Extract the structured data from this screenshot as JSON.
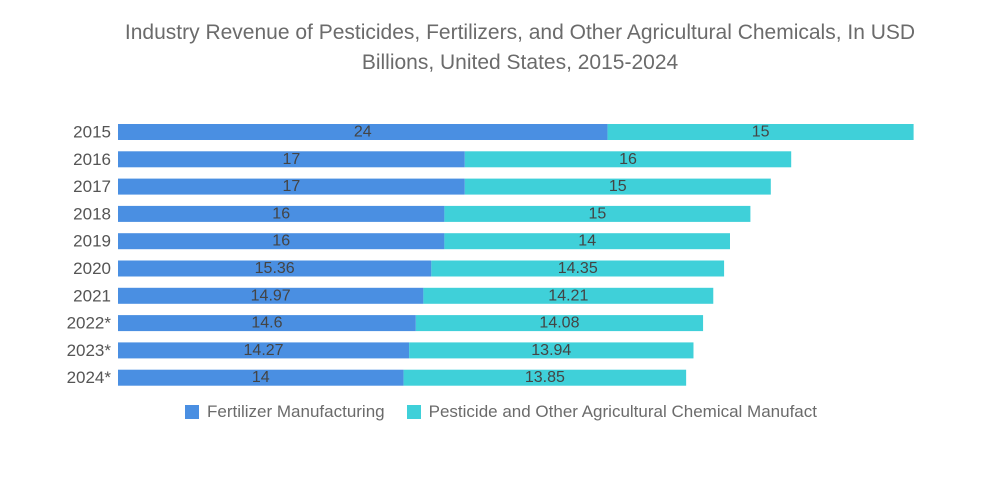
{
  "chart_data": {
    "type": "bar",
    "orientation": "horizontal",
    "stacked": true,
    "title_lines": [
      "Industry Revenue of Pesticides, Fertilizers, and Other Agricultural Chemicals, In USD",
      "Billions, United States, 2015-2024"
    ],
    "categories": [
      "2015",
      "2016",
      "2017",
      "2018",
      "2019",
      "2020",
      "2021",
      "2022*",
      "2023*",
      "2024*"
    ],
    "series": [
      {
        "name": "Fertilizer Manufacturing",
        "color": "#4a8fe2",
        "values": [
          24,
          17,
          17,
          16,
          16,
          15.36,
          14.97,
          14.6,
          14.27,
          14
        ],
        "labels": [
          "24",
          "17",
          "17",
          "16",
          "16",
          "15.36",
          "14.97",
          "14.6",
          "14.27",
          "14"
        ]
      },
      {
        "name": "Pesticide and Other Agricultural Chemical Manufact",
        "color": "#3fd0d9",
        "values": [
          15,
          16,
          15,
          15,
          14,
          14.35,
          14.21,
          14.08,
          13.94,
          13.85
        ],
        "labels": [
          "15",
          "16",
          "15",
          "15",
          "14",
          "14.35",
          "14.21",
          "14.08",
          "13.94",
          "13.85"
        ]
      }
    ],
    "xlim": [
      0,
      39
    ],
    "grid": false,
    "legend_position": "bottom"
  }
}
